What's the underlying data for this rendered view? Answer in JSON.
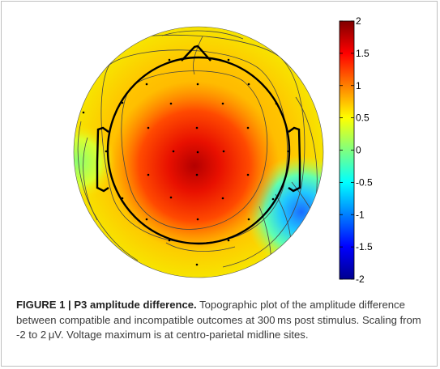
{
  "figure": {
    "label": "FIGURE 1 | ",
    "title": "P3 amplitude difference.",
    "text_a": " Topographic plot of the amplitude difference between compatible and incompatible outcomes at 300 ms post stimulus. Scaling from -2 to 2 ",
    "unit": "μV",
    "text_b": ". Voltage maximum is at centro-parietal midline sites."
  },
  "chart_data": {
    "type": "heatmap",
    "colorbar": {
      "min": -2,
      "max": 2,
      "ticks": [
        "2",
        "1.5",
        "1",
        "0.5",
        "0",
        "-0.5",
        "-1",
        "-1.5",
        "-2"
      ],
      "colormap": "jet"
    },
    "map": {
      "maximum_region": "centro-parietal midline",
      "electrode_count": 30
    }
  }
}
